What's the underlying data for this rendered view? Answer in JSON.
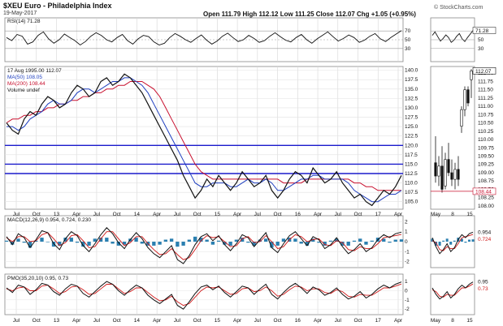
{
  "header": {
    "title": "$XEU Euro - Philadelphia Index",
    "date": "19-May-2017",
    "ohlc": "Open 111.79  High 112.12  Low 111.25  Close 112.07  Chg +1.05 (+0.95%)",
    "brand": "© StockCharts.com"
  },
  "colors": {
    "price": "#111111",
    "ma50": "#1f3fbf",
    "ma200": "#c8102e",
    "hline": "#1a1acc",
    "macd": "#111111",
    "signal": "#d01818",
    "hist": "#2a7fb0",
    "rsi": "#111111",
    "rsiBand": "#999999"
  },
  "chart_data": [
    {
      "type": "line",
      "name": "rsi",
      "title": "RSI(14) 71.28",
      "y_ticks": [
        "70",
        "50",
        "30"
      ],
      "ylim": [
        0,
        100
      ],
      "values": [
        55,
        48,
        62,
        58,
        40,
        45,
        60,
        68,
        52,
        42,
        50,
        63,
        55,
        48,
        38,
        46,
        58,
        66,
        60,
        50,
        45,
        55,
        62,
        48,
        40,
        52,
        60,
        57,
        45,
        38,
        42,
        55,
        64,
        58,
        50,
        44,
        53,
        61,
        49,
        40,
        47,
        58,
        65,
        55,
        46,
        50,
        60,
        53,
        44,
        48,
        58,
        66,
        57,
        49,
        45,
        55,
        62,
        50,
        42,
        52,
        60,
        68,
        57,
        47,
        53,
        61,
        55,
        44,
        49,
        58,
        64,
        52,
        46,
        55,
        63,
        71
      ]
    },
    {
      "type": "line",
      "name": "price",
      "legend": [
        "17 Aug 1995.00  112.07",
        "MA(50) 108.05",
        "MA(200) 108.44",
        "Volume undef"
      ],
      "y_ticks": [
        "140.0",
        "137.5",
        "135.0",
        "132.5",
        "130.0",
        "127.5",
        "125.0",
        "122.5",
        "120.0",
        "117.5",
        "115.0",
        "112.5",
        "110.0",
        "107.5",
        "105.0"
      ],
      "ylim": [
        103.0,
        141.0
      ],
      "x_ticks": [
        "Jul",
        "Oct",
        "13",
        "Apr",
        "Jul",
        "Oct",
        "14",
        "Apr",
        "Jul",
        "Oct",
        "15",
        "Apr",
        "Jul",
        "Oct",
        "16",
        "Apr",
        "Jul",
        "Oct",
        "17",
        "Apr"
      ],
      "hlines": [
        120.0,
        115.0,
        112.5
      ],
      "series": [
        {
          "name": "XEU",
          "values": [
            126,
            124,
            123,
            127,
            129,
            128,
            131,
            133,
            132,
            130,
            131,
            134,
            136,
            135,
            133,
            134,
            137,
            138,
            136,
            137,
            139,
            138,
            136,
            134,
            131,
            128,
            125,
            122,
            119,
            116,
            112,
            109,
            106,
            108,
            111,
            109,
            112,
            110,
            108,
            110,
            113,
            111,
            109,
            110,
            112,
            108,
            106,
            108,
            111,
            113,
            112,
            110,
            114,
            112,
            110,
            111,
            113,
            110,
            108,
            106,
            107,
            105,
            104,
            106,
            108,
            107,
            109,
            112
          ]
        },
        {
          "name": "MA(50)",
          "values": [
            125,
            125,
            124,
            125,
            127,
            128,
            129,
            131,
            132,
            131,
            131,
            132,
            134,
            135,
            135,
            134,
            135,
            136,
            137,
            137,
            138,
            138,
            137,
            136,
            134,
            131,
            128,
            125,
            122,
            119,
            116,
            113,
            110,
            109,
            109,
            110,
            110,
            110,
            109,
            109,
            110,
            111,
            110,
            110,
            111,
            110,
            108,
            108,
            109,
            110,
            111,
            111,
            112,
            112,
            111,
            111,
            111,
            111,
            110,
            108,
            107,
            106,
            105,
            105,
            106,
            107,
            107,
            108
          ]
        },
        {
          "name": "MA(200)",
          "values": [
            126,
            127,
            127,
            128,
            128,
            129,
            129,
            130,
            130,
            131,
            131,
            132,
            132,
            133,
            133,
            134,
            134,
            135,
            135,
            136,
            136,
            137,
            137,
            137,
            136,
            135,
            133,
            130,
            127,
            124,
            121,
            118,
            115,
            113,
            112,
            111,
            111,
            111,
            111,
            111,
            111,
            111,
            111,
            111,
            111,
            111,
            111,
            110,
            110,
            110,
            110,
            111,
            111,
            111,
            111,
            111,
            111,
            111,
            111,
            110,
            110,
            109,
            109,
            108,
            108,
            108,
            108,
            108
          ]
        }
      ]
    },
    {
      "type": "line",
      "name": "macd",
      "title": "MACD(12,26,9) 0.954, 0.724, 0.230",
      "y_ticks": [
        "2",
        "1",
        "0",
        "-1",
        "-2"
      ],
      "ylim": [
        -2.6,
        2.6
      ],
      "series": [
        {
          "name": "MACD",
          "values": [
            0.5,
            -0.3,
            0.8,
            0.4,
            -0.6,
            0.2,
            1.1,
            0.9,
            -0.2,
            -0.8,
            0.3,
            1.0,
            0.6,
            -0.4,
            -1.0,
            -0.2,
            0.7,
            1.4,
            0.8,
            -0.1,
            -0.7,
            0.2,
            0.9,
            0.3,
            -0.6,
            -1.2,
            -1.6,
            -1.0,
            -0.4,
            -1.8,
            -2.2,
            -1.4,
            -0.3,
            0.5,
            0.8,
            0.1,
            0.6,
            -0.3,
            -0.9,
            -0.2,
            0.7,
            0.4,
            -0.5,
            0.2,
            0.9,
            -0.6,
            -1.1,
            -0.2,
            0.6,
            1.0,
            0.3,
            -0.4,
            0.5,
            0.2,
            -0.7,
            -0.3,
            0.4,
            -0.5,
            -1.2,
            -0.8,
            -0.2,
            -1.0,
            -0.6,
            0.2,
            0.7,
            0.4,
            0.8,
            0.95
          ]
        },
        {
          "name": "Signal",
          "values": [
            0.4,
            0.0,
            0.5,
            0.5,
            0.0,
            0.1,
            0.7,
            0.9,
            0.3,
            -0.4,
            -0.1,
            0.6,
            0.7,
            0.1,
            -0.6,
            -0.5,
            0.3,
            1.0,
            1.0,
            0.3,
            -0.4,
            -0.1,
            0.5,
            0.5,
            -0.2,
            -0.8,
            -1.3,
            -1.2,
            -0.7,
            -1.3,
            -1.8,
            -1.6,
            -0.8,
            0.1,
            0.6,
            0.4,
            0.5,
            0.0,
            -0.5,
            -0.4,
            0.3,
            0.5,
            -0.1,
            0.0,
            0.6,
            0.0,
            -0.7,
            -0.5,
            0.2,
            0.7,
            0.5,
            0.0,
            0.2,
            0.3,
            -0.3,
            -0.4,
            0.1,
            -0.1,
            -0.8,
            -0.9,
            -0.5,
            -0.7,
            -0.7,
            -0.2,
            0.4,
            0.5,
            0.6,
            0.72
          ]
        }
      ]
    },
    {
      "type": "line",
      "name": "pmo",
      "title": "PMO(35,20,10) 0.95, 0.73",
      "y_ticks": [
        "1",
        "0",
        "-1",
        "-2"
      ],
      "ylim": [
        -2.6,
        1.8
      ],
      "series": [
        {
          "name": "PMO",
          "values": [
            0.3,
            -0.2,
            0.6,
            0.4,
            -0.4,
            0.1,
            0.8,
            0.6,
            -0.1,
            -0.5,
            0.2,
            0.7,
            0.5,
            -0.3,
            -0.7,
            -0.1,
            0.5,
            1.0,
            0.7,
            0.0,
            -0.5,
            0.1,
            0.6,
            0.3,
            -0.5,
            -1.0,
            -1.4,
            -0.9,
            -0.4,
            -1.6,
            -2.0,
            -1.2,
            -0.3,
            0.4,
            0.6,
            0.1,
            0.5,
            -0.2,
            -0.7,
            -0.1,
            0.5,
            0.3,
            -0.4,
            0.2,
            0.7,
            -0.4,
            -0.9,
            -0.2,
            0.4,
            0.8,
            0.3,
            -0.3,
            0.4,
            0.1,
            -0.5,
            -0.2,
            0.3,
            -0.4,
            -0.9,
            -0.6,
            -0.1,
            -0.8,
            -0.4,
            0.2,
            0.6,
            0.3,
            0.7,
            0.95
          ]
        },
        {
          "name": "Signal",
          "values": [
            0.2,
            0.0,
            0.3,
            0.4,
            0.0,
            0.0,
            0.5,
            0.6,
            0.2,
            -0.3,
            -0.1,
            0.4,
            0.5,
            0.1,
            -0.4,
            -0.3,
            0.2,
            0.7,
            0.7,
            0.2,
            -0.3,
            -0.1,
            0.3,
            0.3,
            -0.2,
            -0.7,
            -1.1,
            -1.0,
            -0.6,
            -1.2,
            -1.6,
            -1.4,
            -0.7,
            0.0,
            0.4,
            0.3,
            0.4,
            0.0,
            -0.4,
            -0.3,
            0.2,
            0.3,
            -0.1,
            0.0,
            0.4,
            0.0,
            -0.6,
            -0.4,
            0.1,
            0.5,
            0.4,
            0.0,
            0.2,
            0.2,
            -0.2,
            -0.3,
            0.1,
            -0.1,
            -0.6,
            -0.7,
            -0.4,
            -0.5,
            -0.5,
            -0.1,
            0.3,
            0.3,
            0.5,
            0.73
          ]
        }
      ]
    },
    {
      "type": "bar",
      "name": "daily-zoom",
      "title": "",
      "labels": {
        "rsi": "71.28",
        "price": "112.07",
        "ma200": "108.44",
        "macd": "0.954",
        "macd_signal": "0.724",
        "pmo": "0.95",
        "pmo_signal": "0.73"
      },
      "y_ticks": [
        "112.00",
        "111.75",
        "111.50",
        "111.25",
        "111.00",
        "110.75",
        "110.50",
        "110.25",
        "110.00",
        "109.75",
        "109.50",
        "109.25",
        "109.00",
        "108.75",
        "108.50",
        "108.25",
        "108.00"
      ],
      "ylim": [
        107.9,
        112.2
      ],
      "x_ticks": [
        "May",
        "8",
        "15"
      ],
      "candles": [
        {
          "o": 109.3,
          "h": 110.1,
          "l": 108.7,
          "c": 108.9
        },
        {
          "o": 108.9,
          "h": 109.5,
          "l": 108.6,
          "c": 109.2
        },
        {
          "o": 109.2,
          "h": 109.8,
          "l": 108.4,
          "c": 108.5
        },
        {
          "o": 108.6,
          "h": 109.6,
          "l": 108.5,
          "c": 109.4
        },
        {
          "o": 109.4,
          "h": 109.9,
          "l": 108.9,
          "c": 109.0
        },
        {
          "o": 109.0,
          "h": 109.4,
          "l": 108.6,
          "c": 108.8
        },
        {
          "o": 108.8,
          "h": 109.3,
          "l": 108.5,
          "c": 109.1
        },
        {
          "o": 109.1,
          "h": 109.5,
          "l": 108.6,
          "c": 108.8
        },
        {
          "o": 110.4,
          "h": 111.0,
          "l": 110.2,
          "c": 110.9
        },
        {
          "o": 110.9,
          "h": 111.6,
          "l": 110.7,
          "c": 111.5
        },
        {
          "o": 111.5,
          "h": 111.6,
          "l": 111.0,
          "c": 111.1
        },
        {
          "o": 111.8,
          "h": 112.12,
          "l": 111.25,
          "c": 112.07
        }
      ]
    }
  ]
}
